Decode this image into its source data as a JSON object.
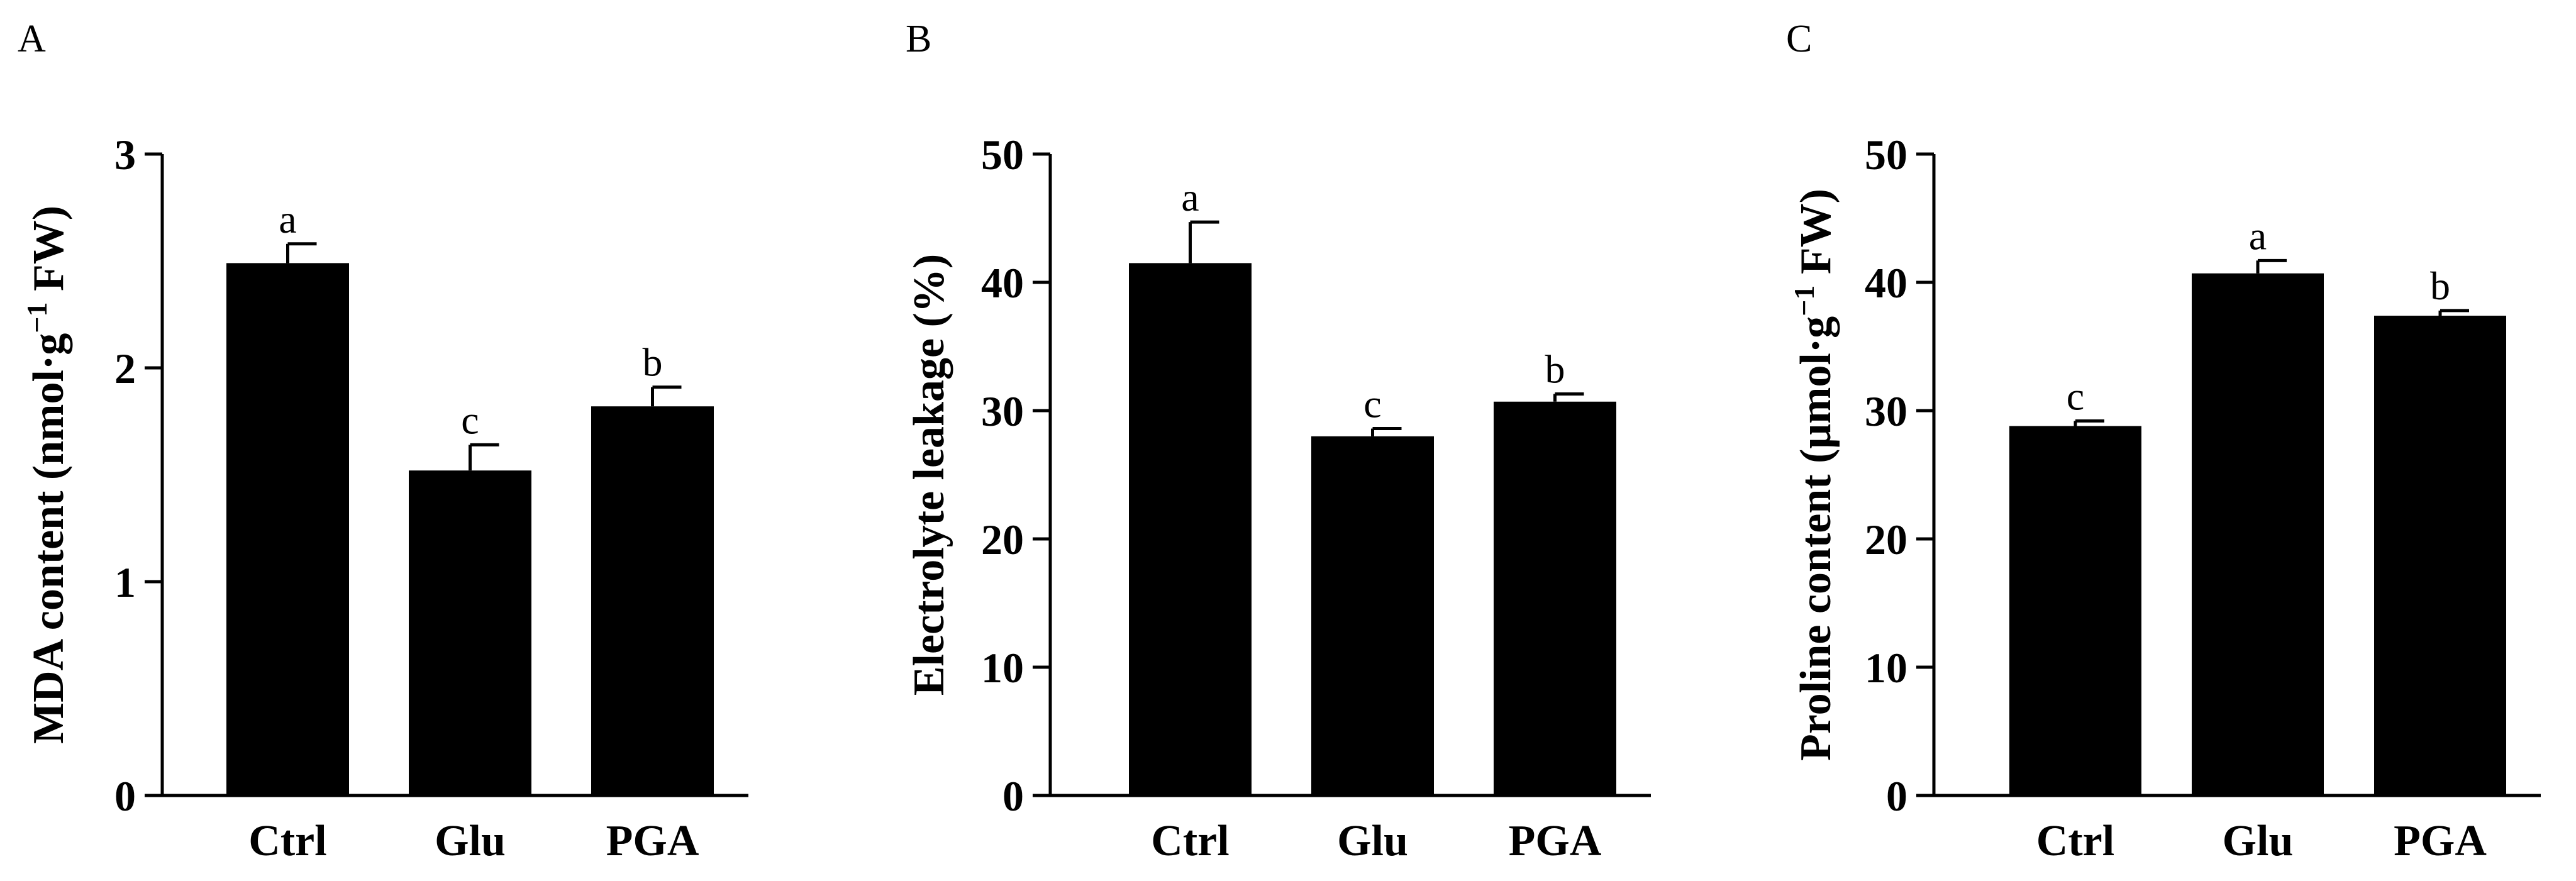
{
  "chart_data": [
    {
      "type": "bar",
      "panel": "A",
      "categories": [
        "Ctrl",
        "Glu",
        "PGA"
      ],
      "values": [
        2.49,
        1.52,
        1.82
      ],
      "errors": [
        0.09,
        0.12,
        0.09
      ],
      "significance": [
        "a",
        "c",
        "b"
      ],
      "ylabel_main": "MDA content (nmol·g",
      "ylabel_sup": "−1",
      "ylabel_tail": " FW)",
      "ylim": [
        0,
        3
      ],
      "yticks": [
        "0",
        "1",
        "2",
        "3"
      ],
      "bar_color": "#000000"
    },
    {
      "type": "bar",
      "panel": "B",
      "categories": [
        "Ctrl",
        "Glu",
        "PGA"
      ],
      "values": [
        41.5,
        28.0,
        30.7
      ],
      "errors": [
        3.2,
        0.6,
        0.6
      ],
      "significance": [
        "a",
        "c",
        "b"
      ],
      "ylabel_main": "Electrolyte leakage (%)",
      "ylabel_sup": "",
      "ylabel_tail": "",
      "ylim": [
        0,
        50
      ],
      "yticks": [
        "0",
        "10",
        "20",
        "30",
        "40",
        "50"
      ],
      "bar_color": "#000000"
    },
    {
      "type": "bar",
      "panel": "C",
      "categories": [
        "Ctrl",
        "Glu",
        "PGA"
      ],
      "values": [
        28.8,
        40.7,
        37.4
      ],
      "errors": [
        0.4,
        1.0,
        0.4
      ],
      "significance": [
        "c",
        "a",
        "b"
      ],
      "ylabel_main": "Proline content (μmol·g",
      "ylabel_sup": "−1",
      "ylabel_tail": " FW)",
      "ylim": [
        0,
        50
      ],
      "yticks": [
        "0",
        "10",
        "20",
        "30",
        "40",
        "50"
      ],
      "bar_color": "#000000"
    }
  ]
}
